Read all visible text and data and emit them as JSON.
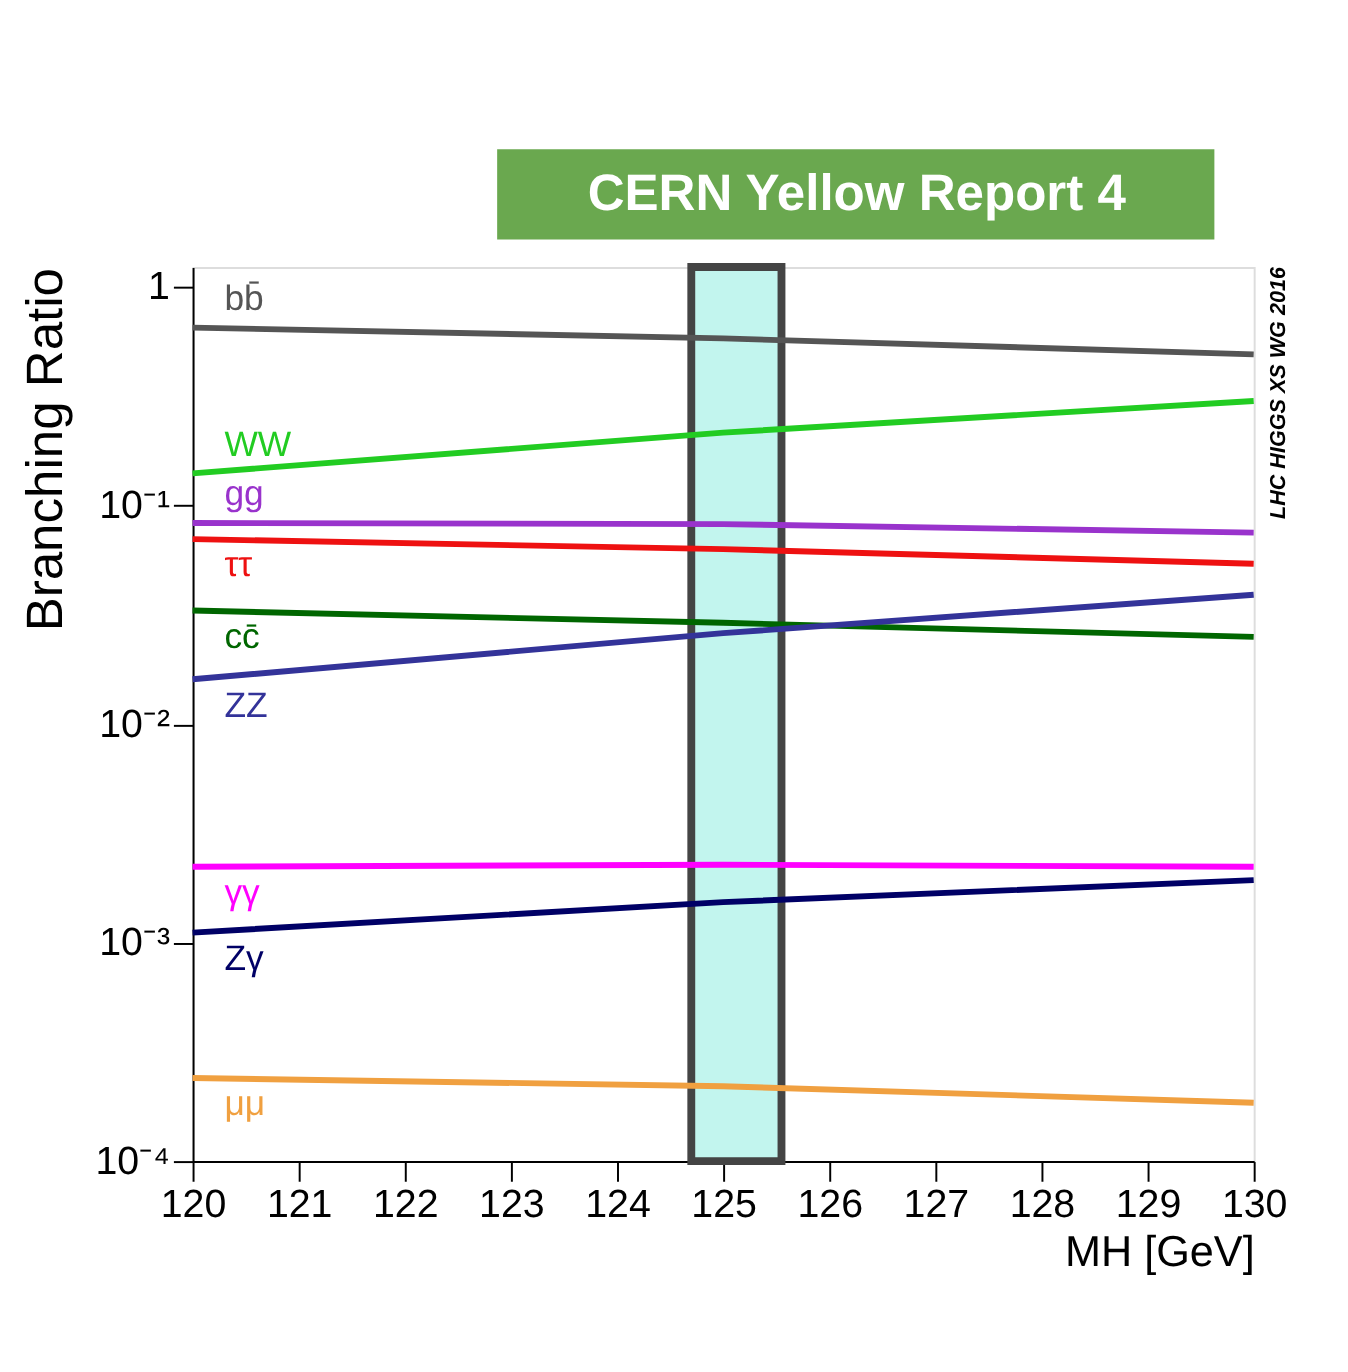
{
  "chart_data": {
    "type": "line",
    "title": "CERN Yellow Report 4",
    "xlabel": "MH [GeV]",
    "ylabel": "Branching Ratio",
    "x": [
      120,
      125,
      130
    ],
    "xlim": [
      120,
      130
    ],
    "xticks": [
      120,
      121,
      122,
      123,
      124,
      125,
      126,
      127,
      128,
      129,
      130
    ],
    "log": true,
    "ylim": [
      0.0001,
      1.23
    ],
    "yticks": [
      {
        "value": 0.0001,
        "label": "10⁻⁴"
      },
      {
        "value": 0.001,
        "label": "10⁻³"
      },
      {
        "value": 0.01,
        "label": "10⁻²"
      },
      {
        "value": 0.1,
        "label": "10⁻¹"
      },
      1
    ],
    "grid": false,
    "marker": "none",
    "line_style": "solid",
    "series": [
      {
        "name": "bb̄",
        "color": "#555555",
        "values": [
          0.65,
          0.58,
          0.49
        ]
      },
      {
        "name": "WW",
        "color": "#22cc22",
        "values": [
          0.14,
          0.215,
          0.3
        ]
      },
      {
        "name": "gg",
        "color": "#9933cc",
        "values": [
          0.083,
          0.082,
          0.075
        ]
      },
      {
        "name": "ττ",
        "color": "#ee1111",
        "values": [
          0.07,
          0.063,
          0.054
        ]
      },
      {
        "name": "cc̄",
        "color": "#006600",
        "values": [
          0.033,
          0.029,
          0.025
        ]
      },
      {
        "name": "ZZ",
        "color": "#333399",
        "values": [
          0.016,
          0.026,
          0.039
        ]
      },
      {
        "name": "γγ",
        "color": "#ff00ff",
        "values": [
          0.00222,
          0.00227,
          0.00222
        ]
      },
      {
        "name": "Zγ",
        "color": "#000066",
        "values": [
          0.00111,
          0.00153,
          0.00193
        ]
      },
      {
        "name": "μμ",
        "color": "#f0a040",
        "values": [
          0.00024,
          0.00022,
          0.000185
        ]
      }
    ],
    "bands": [
      {
        "axis": "x",
        "from": 124.7,
        "to": 125.55,
        "color": "#c2f5ee"
      }
    ],
    "annotations": [
      "LHC HIGGS XS WG 2016"
    ]
  }
}
